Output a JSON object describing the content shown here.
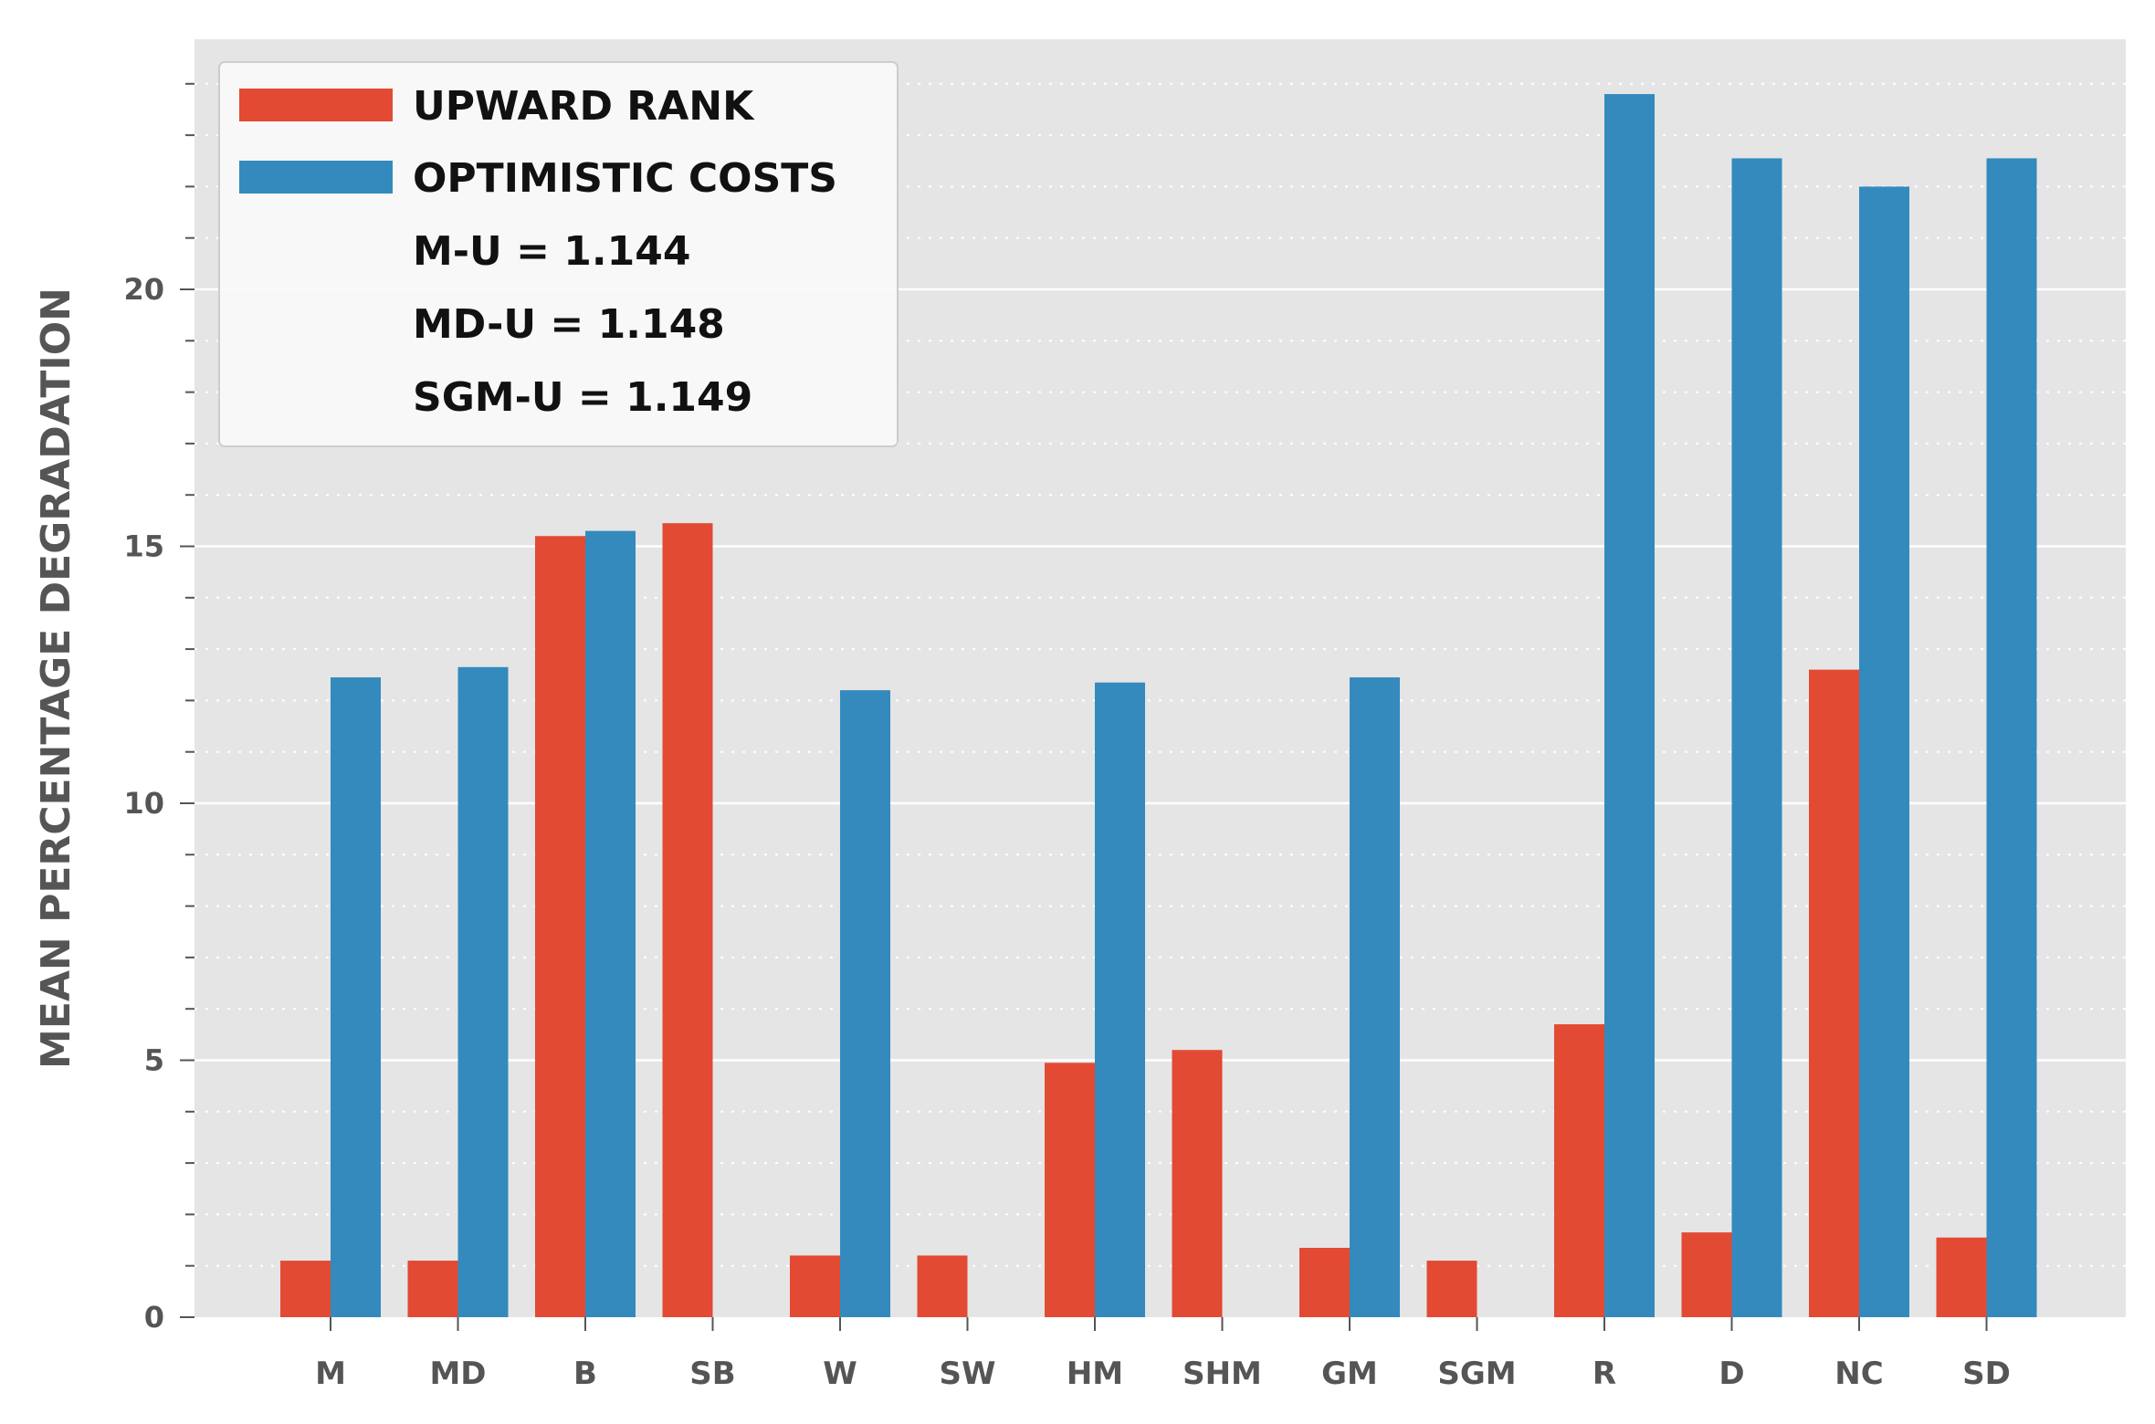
{
  "chart_data": {
    "type": "bar",
    "title": "",
    "xlabel": "",
    "ylabel": "MEAN PERCENTAGE DEGRADATION",
    "categories": [
      "M",
      "MD",
      "B",
      "SB",
      "W",
      "SW",
      "HM",
      "SHM",
      "GM",
      "SGM",
      "R",
      "D",
      "NC",
      "SD"
    ],
    "series": [
      {
        "name": "UPWARD RANK",
        "color": "#e24a33",
        "values": [
          1.1,
          1.1,
          15.2,
          15.45,
          1.2,
          1.2,
          4.95,
          5.2,
          1.35,
          1.1,
          5.7,
          1.65,
          12.6,
          1.55
        ]
      },
      {
        "name": "OPTIMISTIC COSTS",
        "color": "#348abd",
        "values": [
          12.45,
          12.65,
          15.3,
          null,
          12.2,
          null,
          12.35,
          null,
          12.45,
          null,
          23.8,
          22.55,
          22.0,
          22.55
        ]
      }
    ],
    "legend_notes": [
      "M-U = 1.144",
      "MD-U = 1.148",
      "SGM-U = 1.149"
    ],
    "yticks": [
      0,
      5,
      10,
      15,
      20
    ],
    "ylim": [
      0,
      25
    ],
    "grid": true,
    "minor_grid": true,
    "legend_position": "top-left",
    "background_color": "#e5e5e5"
  }
}
